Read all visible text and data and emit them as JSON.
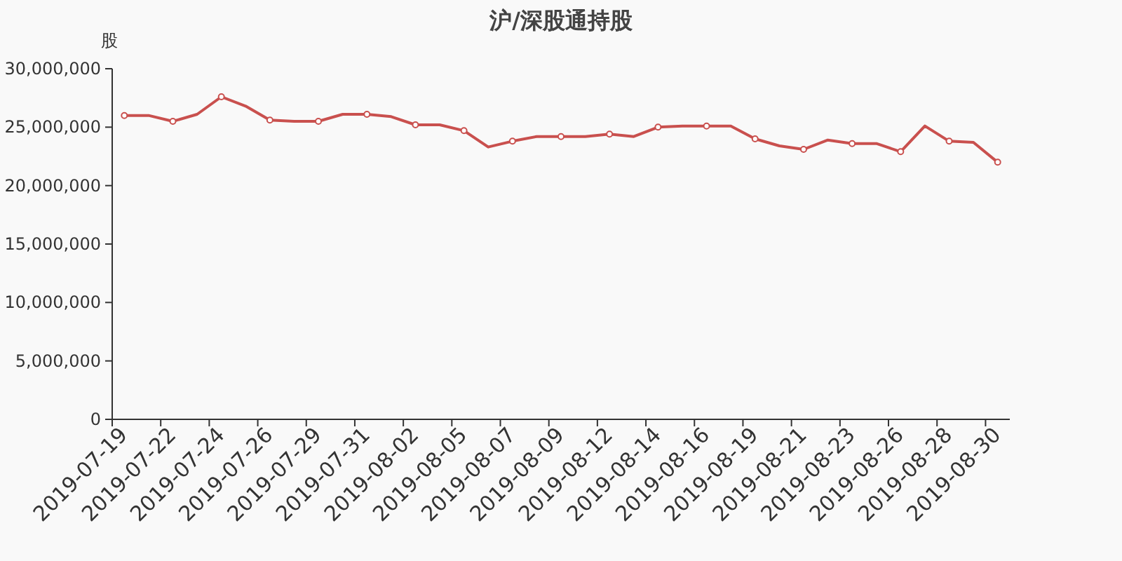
{
  "chart_data": {
    "type": "line",
    "title": "沪/深股通持股",
    "ylabel": "股",
    "categories": [
      "2019-07-19",
      null,
      "2019-07-22",
      null,
      "2019-07-24",
      null,
      "2019-07-26",
      null,
      "2019-07-29",
      null,
      "2019-07-31",
      null,
      "2019-08-02",
      null,
      "2019-08-05",
      null,
      "2019-08-07",
      null,
      "2019-08-09",
      null,
      "2019-08-12",
      null,
      "2019-08-14",
      null,
      "2019-08-16",
      null,
      "2019-08-19",
      null,
      "2019-08-21",
      null,
      "2019-08-23",
      null,
      "2019-08-26",
      null,
      "2019-08-28",
      null,
      "2019-08-30"
    ],
    "series": [
      {
        "color": "#c9504e",
        "values": [
          26000000,
          26000000,
          25500000,
          26100000,
          27600000,
          26800000,
          25600000,
          25500000,
          25500000,
          26100000,
          26100000,
          25900000,
          25200000,
          25200000,
          24700000,
          23300000,
          23800000,
          24200000,
          24200000,
          24200000,
          24400000,
          24200000,
          25000000,
          25100000,
          25100000,
          25100000,
          24000000,
          23400000,
          23100000,
          23900000,
          23600000,
          23600000,
          22900000,
          25100000,
          23800000,
          23700000,
          22000000
        ]
      }
    ],
    "ylim": [
      0,
      30000000
    ],
    "yticks": [
      {
        "value": 0,
        "label": "0"
      },
      {
        "value": 5000000,
        "label": "5,000,000"
      },
      {
        "value": 10000000,
        "label": "10,000,000"
      },
      {
        "value": 15000000,
        "label": "15,000,000"
      },
      {
        "value": 20000000,
        "label": "20,000,000"
      },
      {
        "value": 25000000,
        "label": "25,000,000"
      },
      {
        "value": 30000000,
        "label": "30,000,000"
      }
    ],
    "grid": false,
    "marker": "circle",
    "line_style": "solid"
  }
}
